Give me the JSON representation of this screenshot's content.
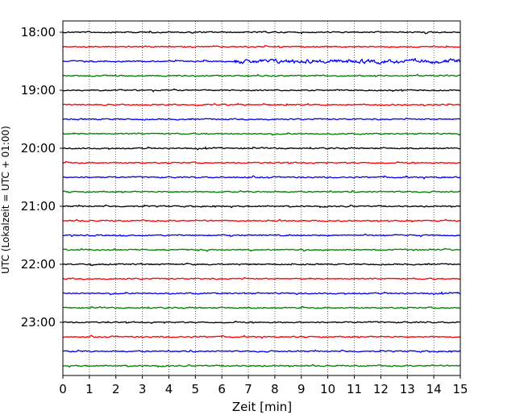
{
  "chart_data": {
    "type": "line",
    "title": "",
    "xlabel": "Zeit  [min]",
    "ylabel": "UTC (Lokalzeit = UTC + 01:00)",
    "xlim": [
      0,
      15
    ],
    "x_ticks": [
      "0",
      "1",
      "2",
      "3",
      "4",
      "5",
      "6",
      "7",
      "8",
      "9",
      "10",
      "11",
      "12",
      "13",
      "14",
      "15"
    ],
    "y_ticks": [
      "18:00",
      "19:00",
      "20:00",
      "21:00",
      "22:00",
      "23:00"
    ],
    "grid": "vertical dotted at each minute",
    "trace_colors": [
      "#000000",
      "#ff0000",
      "#0000ff",
      "#008000"
    ],
    "traces": [
      {
        "start": "18:00",
        "color": "#000000"
      },
      {
        "start": "18:15",
        "color": "#ff0000"
      },
      {
        "start": "18:30",
        "color": "#0000ff"
      },
      {
        "start": "18:45",
        "color": "#008000"
      },
      {
        "start": "19:00",
        "color": "#000000"
      },
      {
        "start": "19:15",
        "color": "#ff0000"
      },
      {
        "start": "19:30",
        "color": "#0000ff"
      },
      {
        "start": "19:45",
        "color": "#008000"
      },
      {
        "start": "20:00",
        "color": "#000000"
      },
      {
        "start": "20:15",
        "color": "#ff0000"
      },
      {
        "start": "20:30",
        "color": "#0000ff"
      },
      {
        "start": "20:45",
        "color": "#008000"
      },
      {
        "start": "21:00",
        "color": "#000000"
      },
      {
        "start": "21:15",
        "color": "#ff0000"
      },
      {
        "start": "21:30",
        "color": "#0000ff"
      },
      {
        "start": "21:45",
        "color": "#008000"
      },
      {
        "start": "22:00",
        "color": "#000000"
      },
      {
        "start": "22:15",
        "color": "#ff0000"
      },
      {
        "start": "22:30",
        "color": "#0000ff"
      },
      {
        "start": "22:45",
        "color": "#008000"
      },
      {
        "start": "23:00",
        "color": "#000000"
      },
      {
        "start": "23:15",
        "color": "#ff0000"
      },
      {
        "start": "23:30",
        "color": "#0000ff"
      },
      {
        "start": "23:45",
        "color": "#008000"
      }
    ]
  }
}
